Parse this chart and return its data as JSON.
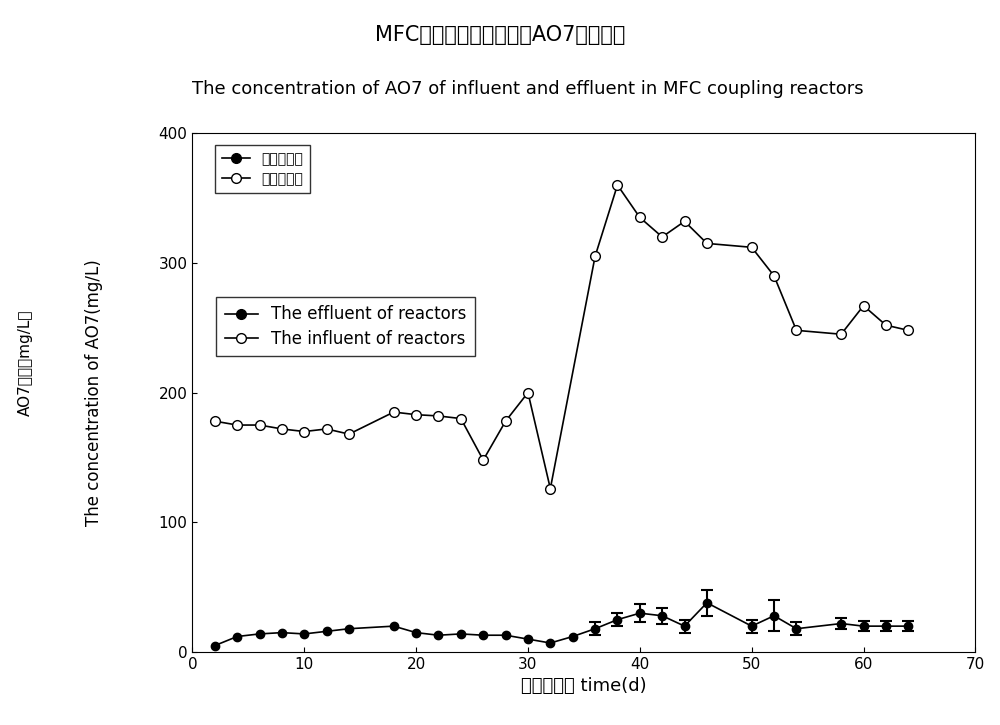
{
  "title_chinese": "MFC耦合反应器中进出水AO7浓度比较",
  "title_english": "The concentration of AO7 of influent and effluent in MFC coupling reactors",
  "xlabel": "时间（天） time(d)",
  "ylabel_chinese": "AO7浓度（mg/L）",
  "ylabel_english": "The concentration of AO7(mg/L)",
  "xlim": [
    0,
    70
  ],
  "ylim": [
    0,
    400
  ],
  "xticks": [
    0,
    10,
    20,
    30,
    40,
    50,
    60,
    70
  ],
  "yticks": [
    0,
    100,
    200,
    300,
    400
  ],
  "influent_x": [
    2,
    4,
    6,
    8,
    10,
    12,
    14,
    18,
    20,
    22,
    24,
    26,
    28,
    30,
    32,
    36,
    38,
    40,
    42,
    44,
    46,
    50,
    52,
    54,
    58,
    60,
    62,
    64
  ],
  "influent_y": [
    178,
    175,
    175,
    172,
    170,
    172,
    168,
    185,
    183,
    182,
    180,
    148,
    178,
    200,
    126,
    305,
    360,
    335,
    320,
    332,
    315,
    312,
    290,
    248,
    245,
    267,
    252,
    248
  ],
  "effluent_x": [
    2,
    4,
    6,
    8,
    10,
    12,
    14,
    18,
    20,
    22,
    24,
    26,
    28,
    30,
    32,
    34,
    36,
    38,
    40,
    42,
    44,
    46,
    50,
    52,
    54,
    58,
    60,
    62,
    64
  ],
  "effluent_y": [
    5,
    12,
    14,
    15,
    14,
    16,
    18,
    20,
    15,
    13,
    14,
    13,
    13,
    10,
    7,
    12,
    18,
    25,
    30,
    28,
    20,
    38,
    20,
    28,
    18,
    22,
    20,
    20,
    20
  ],
  "effluent_yerr": [
    0,
    0,
    0,
    0,
    0,
    0,
    0,
    0,
    0,
    0,
    0,
    0,
    0,
    0,
    0,
    0,
    5,
    5,
    7,
    6,
    5,
    10,
    5,
    12,
    5,
    4,
    4,
    4,
    4
  ],
  "legend_cn_effluent": "反应器出水",
  "legend_cn_influent": "反应器进水",
  "legend_en_effluent": "The effluent of reactors",
  "legend_en_influent": "The influent of reactors",
  "background_color": "#ffffff",
  "line_color": "#000000"
}
